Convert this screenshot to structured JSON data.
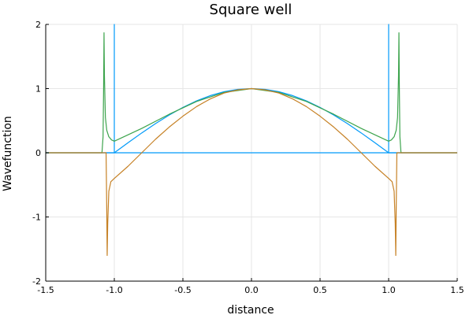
{
  "chart_data": {
    "type": "line",
    "title": "Square well",
    "xlabel": "distance",
    "ylabel": "Wavefunction",
    "xlim": [
      -1.5,
      1.5
    ],
    "ylim": [
      -2,
      2
    ],
    "grid": true,
    "legend": "none",
    "xticks": [
      {
        "value": -1.5,
        "label": "-1.5"
      },
      {
        "value": -1.0,
        "label": "-1.0"
      },
      {
        "value": -0.5,
        "label": "-0.5"
      },
      {
        "value": 0.0,
        "label": "0.0"
      },
      {
        "value": 0.5,
        "label": "0.5"
      },
      {
        "value": 1.0,
        "label": "1.0"
      },
      {
        "value": 1.5,
        "label": "1.5"
      }
    ],
    "yticks": [
      {
        "value": -2,
        "label": "-2"
      },
      {
        "value": -1,
        "label": "-1"
      },
      {
        "value": 0,
        "label": "0"
      },
      {
        "value": 1,
        "label": "1"
      },
      {
        "value": 2,
        "label": "2"
      }
    ],
    "series": [
      {
        "color": "#009af9",
        "points": [
          [
            -1.5,
            0
          ],
          [
            -1.0,
            0
          ],
          [
            -1.0,
            2.0
          ],
          [
            -1.0,
            0
          ],
          [
            1.0,
            0
          ],
          [
            1.0,
            2.0
          ],
          [
            1.0,
            0
          ],
          [
            1.5,
            0
          ]
        ]
      },
      {
        "color": "#e26f46",
        "points": [
          [
            -1.5,
            0
          ],
          [
            -1.0,
            0.0
          ],
          [
            -0.9,
            0.156
          ],
          [
            -0.8,
            0.309
          ],
          [
            -0.7,
            0.454
          ],
          [
            -0.6,
            0.588
          ],
          [
            -0.5,
            0.707
          ],
          [
            -0.4,
            0.809
          ],
          [
            -0.3,
            0.891
          ],
          [
            -0.2,
            0.951
          ],
          [
            -0.1,
            0.988
          ],
          [
            0.0,
            1.0
          ],
          [
            0.1,
            0.988
          ],
          [
            0.2,
            0.951
          ],
          [
            0.3,
            0.891
          ],
          [
            0.4,
            0.809
          ],
          [
            0.5,
            0.707
          ],
          [
            0.6,
            0.588
          ],
          [
            0.7,
            0.454
          ],
          [
            0.8,
            0.309
          ],
          [
            0.9,
            0.156
          ],
          [
            1.0,
            0.0
          ],
          [
            1.5,
            0
          ]
        ],
        "stroke": "#009af9"
      },
      {
        "color": "#3da44d",
        "points": [
          [
            -1.5,
            0
          ],
          [
            -1.09,
            0
          ],
          [
            -1.082,
            0.25
          ],
          [
            -1.078,
            1.0
          ],
          [
            -1.075,
            1.87
          ],
          [
            -1.072,
            1.2
          ],
          [
            -1.065,
            0.55
          ],
          [
            -1.055,
            0.35
          ],
          [
            -1.04,
            0.25
          ],
          [
            -1.02,
            0.2
          ],
          [
            -1.0,
            0.18
          ],
          [
            -0.8,
            0.38
          ],
          [
            -0.6,
            0.6
          ],
          [
            -0.4,
            0.8
          ],
          [
            -0.2,
            0.94
          ],
          [
            0.0,
            1.0
          ],
          [
            0.2,
            0.94
          ],
          [
            0.4,
            0.8
          ],
          [
            0.6,
            0.6
          ],
          [
            0.8,
            0.38
          ],
          [
            1.0,
            0.18
          ],
          [
            1.02,
            0.2
          ],
          [
            1.04,
            0.25
          ],
          [
            1.055,
            0.35
          ],
          [
            1.065,
            0.55
          ],
          [
            1.072,
            1.2
          ],
          [
            1.075,
            1.87
          ],
          [
            1.078,
            1.0
          ],
          [
            1.082,
            0.25
          ],
          [
            1.09,
            0
          ],
          [
            1.5,
            0
          ]
        ]
      },
      {
        "color": "#c68125",
        "points": [
          [
            -1.5,
            0
          ],
          [
            -1.06,
            0
          ],
          [
            -1.058,
            -0.35
          ],
          [
            -1.055,
            -0.9
          ],
          [
            -1.052,
            -1.6
          ],
          [
            -1.048,
            -1.1
          ],
          [
            -1.04,
            -0.6
          ],
          [
            -1.025,
            -0.45
          ],
          [
            -1.0,
            -0.4
          ],
          [
            -0.9,
            -0.21
          ],
          [
            -0.8,
            0.0
          ],
          [
            -0.7,
            0.21
          ],
          [
            -0.6,
            0.4
          ],
          [
            -0.5,
            0.57
          ],
          [
            -0.4,
            0.72
          ],
          [
            -0.3,
            0.84
          ],
          [
            -0.2,
            0.93
          ],
          [
            -0.1,
            0.98
          ],
          [
            0.0,
            1.0
          ],
          [
            0.1,
            0.98
          ],
          [
            0.2,
            0.93
          ],
          [
            0.3,
            0.84
          ],
          [
            0.4,
            0.72
          ],
          [
            0.5,
            0.57
          ],
          [
            0.6,
            0.4
          ],
          [
            0.7,
            0.21
          ],
          [
            0.8,
            0.0
          ],
          [
            0.9,
            -0.21
          ],
          [
            1.0,
            -0.4
          ],
          [
            1.025,
            -0.45
          ],
          [
            1.04,
            -0.6
          ],
          [
            1.048,
            -1.1
          ],
          [
            1.052,
            -1.6
          ],
          [
            1.055,
            -0.9
          ],
          [
            1.058,
            -0.35
          ],
          [
            1.06,
            0
          ],
          [
            1.5,
            0
          ]
        ]
      }
    ]
  }
}
